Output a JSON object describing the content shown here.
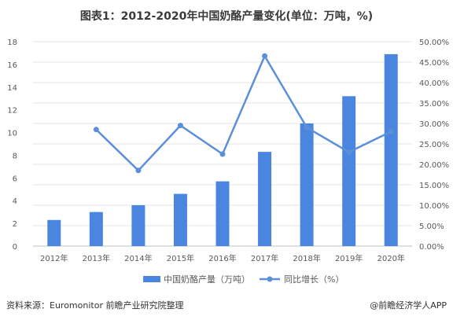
{
  "chart_data": {
    "type": "bar",
    "title": "图表1：2012-2020年中国奶酪产量变化(单位：万吨，%)",
    "categories": [
      "2012年",
      "2013年",
      "2014年",
      "2015年",
      "2016年",
      "2017年",
      "2018年",
      "2019年",
      "2020年"
    ],
    "series": [
      {
        "name": "中国奶酪产量（万吨）",
        "type": "bar",
        "axis": "left",
        "color": "#4a86e0",
        "values": [
          2.3,
          3.0,
          3.6,
          4.6,
          5.7,
          8.3,
          10.8,
          13.2,
          16.9
        ]
      },
      {
        "name": "同比增长（%）",
        "type": "line",
        "axis": "right",
        "color": "#5b8fd9",
        "values": [
          null,
          28.5,
          18.5,
          29.5,
          22.5,
          46.5,
          29.0,
          23.0,
          28.0
        ]
      }
    ],
    "ylim_left": [
      0,
      18
    ],
    "yticks_left": [
      "0",
      "2",
      "4",
      "6",
      "8",
      "10",
      "12",
      "14",
      "16",
      "18"
    ],
    "ylim_right": [
      0,
      50
    ],
    "yticks_right": [
      "0.00%",
      "5.00%",
      "10.00%",
      "15.00%",
      "20.00%",
      "25.00%",
      "30.00%",
      "35.00%",
      "40.00%",
      "45.00%",
      "50.00%"
    ],
    "grid": true,
    "legend_position": "bottom-center"
  },
  "footer": {
    "source": "资料来源：Euromonitor 前瞻产业研究院整理",
    "brand": "@前瞻经济学人APP"
  }
}
